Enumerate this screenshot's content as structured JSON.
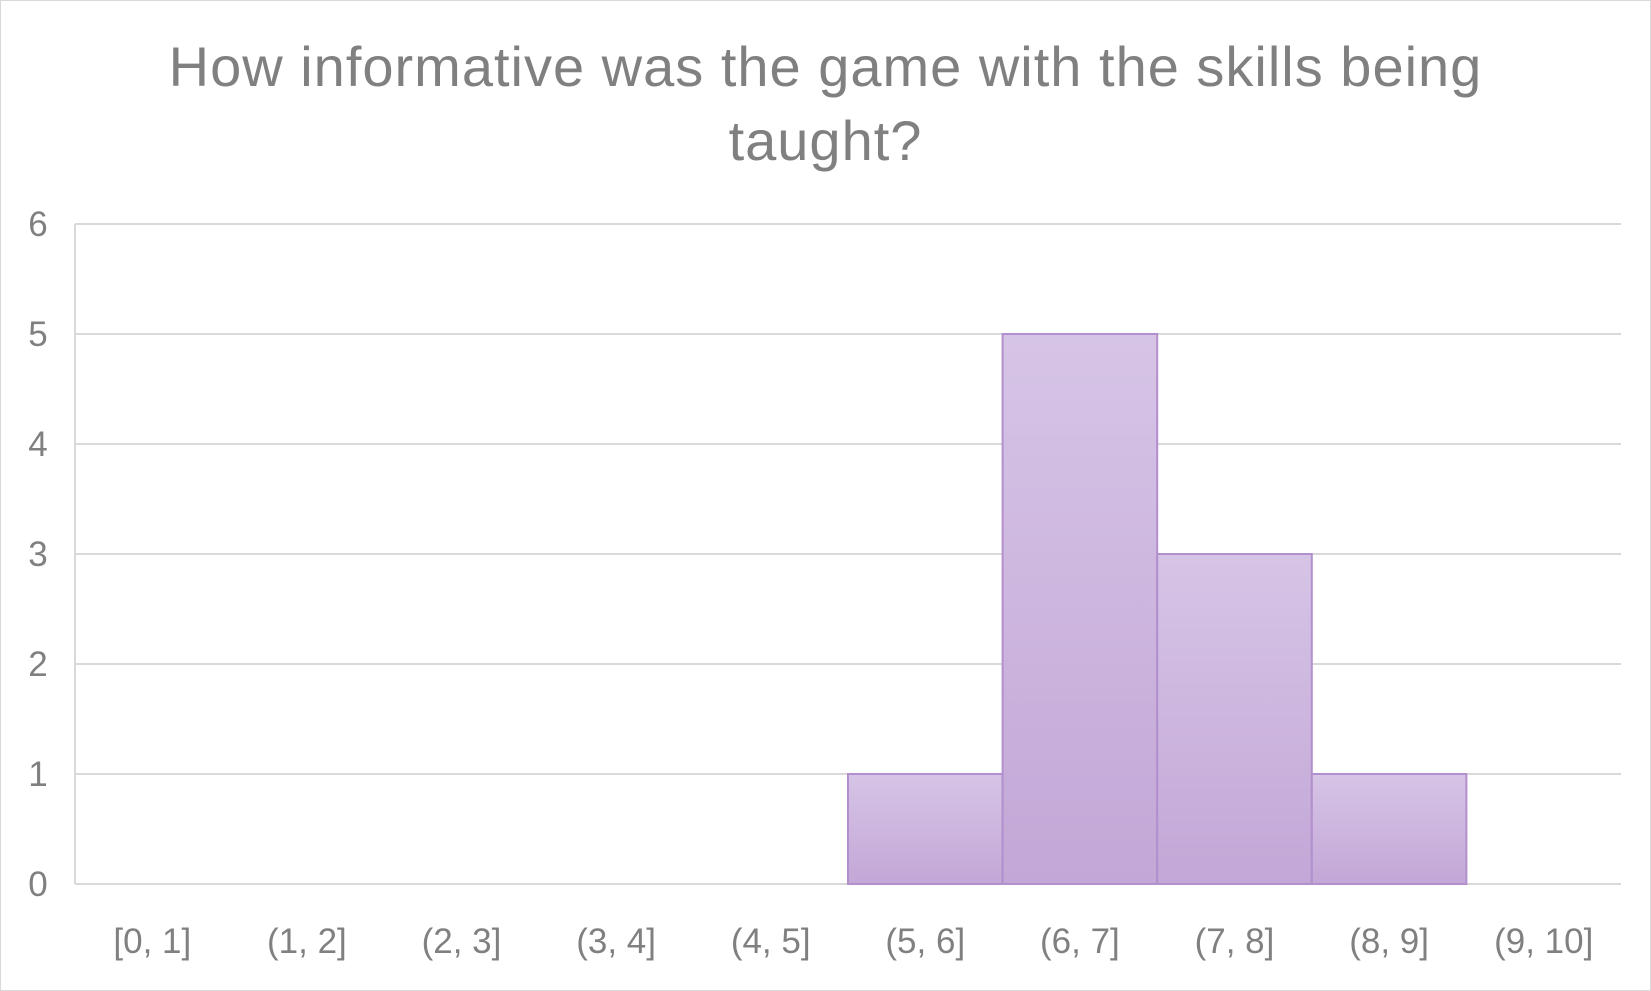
{
  "chart_data": {
    "type": "bar",
    "title_lines": [
      "How informative was the game with the skills being",
      "taught?"
    ],
    "xlabel": "",
    "ylabel": "",
    "categories": [
      "[0, 1]",
      "(1, 2]",
      "(2, 3]",
      "(3, 4]",
      "(4, 5]",
      "(5, 6]",
      "(6, 7]",
      "(7, 8]",
      "(8, 9]",
      "(9, 10]"
    ],
    "values": [
      0,
      0,
      0,
      0,
      0,
      1,
      5,
      3,
      1,
      0
    ],
    "ylim": [
      0,
      6
    ],
    "yticks": [
      "0",
      "1",
      "2",
      "3",
      "4",
      "5",
      "6"
    ],
    "grid": true,
    "legend": "none",
    "colors": {
      "bar_top": "#d6c4e6",
      "bar_bottom": "#c3a7d7",
      "bar_border": "#b28fcd",
      "gridline": "#d9d9d9",
      "text": "#808080"
    }
  }
}
